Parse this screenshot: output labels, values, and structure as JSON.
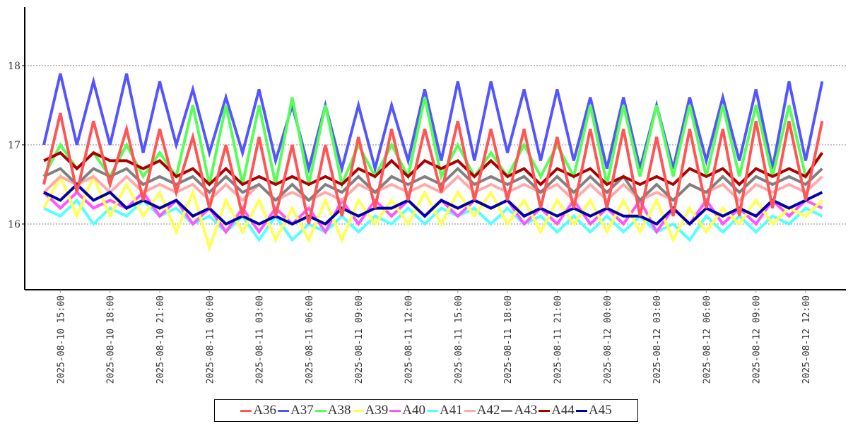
{
  "chart_data": {
    "type": "line",
    "title": "",
    "xlabel": "",
    "ylabel": "",
    "x_start": "2025-08-10 14:00",
    "x_interval_hours": 1,
    "xlim": [
      "2025-08-10 12:51",
      "2025-08-12 14:26"
    ],
    "ylim": [
      15.17,
      18.74
    ],
    "yticks": [
      16,
      17,
      18
    ],
    "xtick_labels": [
      "2025-08-10  15:00",
      "2025-08-10  18:00",
      "2025-08-10  21:00",
      "2025-08-11  00:00",
      "2025-08-11  03:00",
      "2025-08-11  06:00",
      "2025-08-11  09:00",
      "2025-08-11  12:00",
      "2025-08-11  15:00",
      "2025-08-11  18:00",
      "2025-08-11  21:00",
      "2025-08-12  00:00",
      "2025-08-12  03:00",
      "2025-08-12  06:00",
      "2025-08-12  09:00",
      "2025-08-12  12:00"
    ],
    "grid": "horizontal dashed",
    "legend_position": "bottom-center",
    "series": [
      {
        "name": "A36",
        "color": "#ff5555",
        "values": [
          16.5,
          17.4,
          16.4,
          17.3,
          16.5,
          17.2,
          16.3,
          17.2,
          16.4,
          17.1,
          16.2,
          17.0,
          16.1,
          17.1,
          16.1,
          17.0,
          16.0,
          17.0,
          16.1,
          17.1,
          16.2,
          17.2,
          16.3,
          17.2,
          16.4,
          17.3,
          16.3,
          17.2,
          16.3,
          17.2,
          16.2,
          17.1,
          16.2,
          17.2,
          16.2,
          17.2,
          16.1,
          17.1,
          16.1,
          17.2,
          16.2,
          17.2,
          16.1,
          17.3,
          16.2,
          17.3,
          16.3,
          17.3
        ]
      },
      {
        "name": "A37",
        "color": "#5555ff",
        "values": [
          17.0,
          17.9,
          17.0,
          17.8,
          17.0,
          17.9,
          16.9,
          17.8,
          17.0,
          17.7,
          16.9,
          17.6,
          16.9,
          17.7,
          16.8,
          17.5,
          16.7,
          17.5,
          16.7,
          17.5,
          16.7,
          17.5,
          16.8,
          17.7,
          16.8,
          17.8,
          16.8,
          17.8,
          16.9,
          17.7,
          16.8,
          17.7,
          16.8,
          17.6,
          16.7,
          17.6,
          16.7,
          17.5,
          16.7,
          17.6,
          16.8,
          17.6,
          16.8,
          17.7,
          16.7,
          17.8,
          16.8,
          17.8
        ]
      },
      {
        "name": "A38",
        "color": "#55ff55",
        "values": [
          16.6,
          17.0,
          16.7,
          16.9,
          16.6,
          17.0,
          16.6,
          16.9,
          16.6,
          17.5,
          16.5,
          17.5,
          16.5,
          17.5,
          16.5,
          17.6,
          16.5,
          17.5,
          16.5,
          17.0,
          16.6,
          17.0,
          16.6,
          17.6,
          16.6,
          17.0,
          16.6,
          16.9,
          16.6,
          17.0,
          16.6,
          17.0,
          16.6,
          17.5,
          16.5,
          17.5,
          16.6,
          17.5,
          16.6,
          17.5,
          16.6,
          17.5,
          16.6,
          17.5,
          16.6,
          17.5,
          16.6,
          16.9
        ]
      },
      {
        "name": "A39",
        "color": "#ffff55",
        "values": [
          16.2,
          16.6,
          16.1,
          16.6,
          16.1,
          16.5,
          16.1,
          16.4,
          15.9,
          16.4,
          15.7,
          16.3,
          15.9,
          16.3,
          15.8,
          16.2,
          15.8,
          16.3,
          15.8,
          16.3,
          16.0,
          16.3,
          16.0,
          16.4,
          16.0,
          16.4,
          16.1,
          16.4,
          16.0,
          16.3,
          15.9,
          16.3,
          16.0,
          16.3,
          15.9,
          16.3,
          15.9,
          16.3,
          15.8,
          16.2,
          15.9,
          16.2,
          16.0,
          16.3,
          16.0,
          16.2,
          16.1,
          16.3
        ]
      },
      {
        "name": "A40",
        "color": "#ff55ff",
        "values": [
          16.4,
          16.2,
          16.4,
          16.2,
          16.3,
          16.2,
          16.4,
          16.1,
          16.3,
          16.0,
          16.2,
          15.9,
          16.2,
          15.9,
          16.2,
          16.0,
          16.2,
          15.9,
          16.3,
          16.0,
          16.3,
          16.1,
          16.3,
          16.1,
          16.3,
          16.1,
          16.3,
          16.2,
          16.3,
          16.0,
          16.2,
          16.0,
          16.3,
          16.0,
          16.2,
          16.0,
          16.3,
          15.9,
          16.2,
          16.0,
          16.3,
          16.0,
          16.2,
          16.0,
          16.3,
          16.1,
          16.3,
          16.2
        ]
      },
      {
        "name": "A41",
        "color": "#55ffff",
        "values": [
          16.2,
          16.1,
          16.3,
          16.0,
          16.2,
          16.1,
          16.3,
          16.1,
          16.2,
          16.0,
          16.1,
          15.9,
          16.1,
          15.8,
          16.1,
          15.8,
          16.0,
          15.9,
          16.1,
          15.9,
          16.1,
          16.0,
          16.2,
          16.0,
          16.2,
          16.1,
          16.2,
          16.0,
          16.2,
          16.0,
          16.1,
          15.9,
          16.1,
          15.9,
          16.1,
          15.9,
          16.1,
          15.9,
          16.0,
          15.8,
          16.1,
          15.9,
          16.1,
          15.9,
          16.1,
          16.0,
          16.2,
          16.1
        ]
      },
      {
        "name": "A42",
        "color": "#ffaaaa",
        "values": [
          16.4,
          16.6,
          16.5,
          16.6,
          16.4,
          16.6,
          16.4,
          16.5,
          16.4,
          16.5,
          16.3,
          16.5,
          16.3,
          16.5,
          16.3,
          16.4,
          16.3,
          16.4,
          16.3,
          16.5,
          16.4,
          16.5,
          16.4,
          16.5,
          16.4,
          16.6,
          16.4,
          16.5,
          16.4,
          16.5,
          16.4,
          16.5,
          16.3,
          16.5,
          16.3,
          16.5,
          16.3,
          16.4,
          16.3,
          16.5,
          16.4,
          16.5,
          16.3,
          16.5,
          16.4,
          16.5,
          16.4,
          16.6
        ]
      },
      {
        "name": "A43",
        "color": "#808080",
        "values": [
          16.6,
          16.7,
          16.5,
          16.7,
          16.6,
          16.7,
          16.5,
          16.6,
          16.5,
          16.6,
          16.4,
          16.6,
          16.4,
          16.5,
          16.3,
          16.5,
          16.3,
          16.5,
          16.4,
          16.6,
          16.4,
          16.6,
          16.5,
          16.6,
          16.5,
          16.7,
          16.5,
          16.6,
          16.5,
          16.6,
          16.4,
          16.6,
          16.4,
          16.6,
          16.4,
          16.6,
          16.3,
          16.5,
          16.3,
          16.5,
          16.4,
          16.6,
          16.4,
          16.6,
          16.5,
          16.6,
          16.5,
          16.7
        ]
      },
      {
        "name": "A44",
        "color": "#aa0000",
        "values": [
          16.8,
          16.9,
          16.7,
          16.9,
          16.8,
          16.8,
          16.7,
          16.8,
          16.6,
          16.7,
          16.5,
          16.7,
          16.5,
          16.6,
          16.5,
          16.6,
          16.5,
          16.6,
          16.5,
          16.7,
          16.6,
          16.8,
          16.6,
          16.8,
          16.7,
          16.8,
          16.6,
          16.8,
          16.6,
          16.7,
          16.5,
          16.7,
          16.6,
          16.7,
          16.5,
          16.6,
          16.5,
          16.6,
          16.5,
          16.7,
          16.6,
          16.7,
          16.5,
          16.7,
          16.6,
          16.7,
          16.6,
          16.9
        ]
      },
      {
        "name": "A45",
        "color": "#0000aa",
        "values": [
          16.4,
          16.3,
          16.5,
          16.3,
          16.4,
          16.2,
          16.3,
          16.2,
          16.3,
          16.1,
          16.2,
          16.0,
          16.1,
          16.0,
          16.1,
          16.0,
          16.1,
          16.0,
          16.2,
          16.1,
          16.2,
          16.2,
          16.3,
          16.1,
          16.3,
          16.2,
          16.3,
          16.2,
          16.3,
          16.1,
          16.2,
          16.1,
          16.2,
          16.1,
          16.2,
          16.1,
          16.1,
          16.0,
          16.2,
          16.0,
          16.2,
          16.1,
          16.2,
          16.1,
          16.3,
          16.2,
          16.3,
          16.4
        ]
      }
    ]
  }
}
